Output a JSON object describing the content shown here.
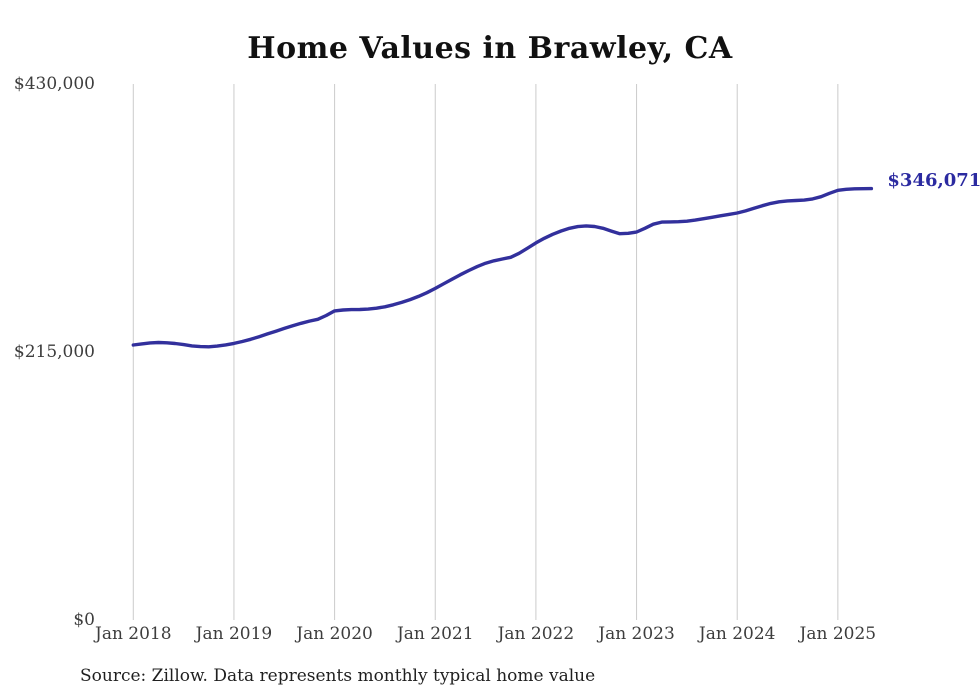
{
  "colors": {
    "line": "#32309c",
    "end_label": "#2b2aa0",
    "grid": "#cbcbcb",
    "axis_text": "#3d3d3d",
    "title_text": "#111111"
  },
  "chart_data": {
    "type": "line",
    "title": "Home Values in Brawley, CA",
    "source_note": "Source: Zillow. Data represents monthly typical home value",
    "xlabel": "",
    "ylabel": "",
    "frequency": "monthly",
    "x_start": "2018-01",
    "x_end": "2025-05",
    "ylim": [
      0,
      430000
    ],
    "grid": "vertical-only",
    "legend": "none",
    "x_tick_labels": [
      "Jan 2018",
      "Jan 2019",
      "Jan 2020",
      "Jan 2021",
      "Jan 2022",
      "Jan 2023",
      "Jan 2024",
      "Jan 2025"
    ],
    "y_ticks": [
      {
        "label": "$0",
        "value": 0
      },
      {
        "label": "$215,000",
        "value": 215000
      },
      {
        "label": "$430,000",
        "value": 430000
      }
    ],
    "annotation": {
      "text": "$346,071",
      "position": "line-end"
    },
    "series": [
      {
        "name": "Typical home value",
        "values": [
          220600,
          221500,
          222300,
          222600,
          222400,
          221800,
          220900,
          219900,
          219300,
          219200,
          219700,
          220700,
          221900,
          223400,
          225200,
          227300,
          229500,
          231700,
          233900,
          236000,
          238000,
          239800,
          241200,
          244300,
          248000,
          248700,
          249000,
          249100,
          249400,
          250100,
          251300,
          252900,
          254800,
          257000,
          259600,
          262600,
          266000,
          269700,
          273400,
          277000,
          280400,
          283500,
          286200,
          288200,
          289600,
          291000,
          294200,
          298300,
          302500,
          306200,
          309400,
          312100,
          314200,
          315600,
          316200,
          315700,
          314200,
          312000,
          309900,
          310200,
          311300,
          314200,
          317500,
          319200,
          319400,
          319500,
          319900,
          320800,
          321900,
          323100,
          324300,
          325400,
          326500,
          328200,
          330300,
          332400,
          334200,
          335500,
          336200,
          336500,
          336900,
          337800,
          339600,
          342300,
          344700,
          345500,
          345900,
          346000,
          346071
        ]
      }
    ]
  }
}
